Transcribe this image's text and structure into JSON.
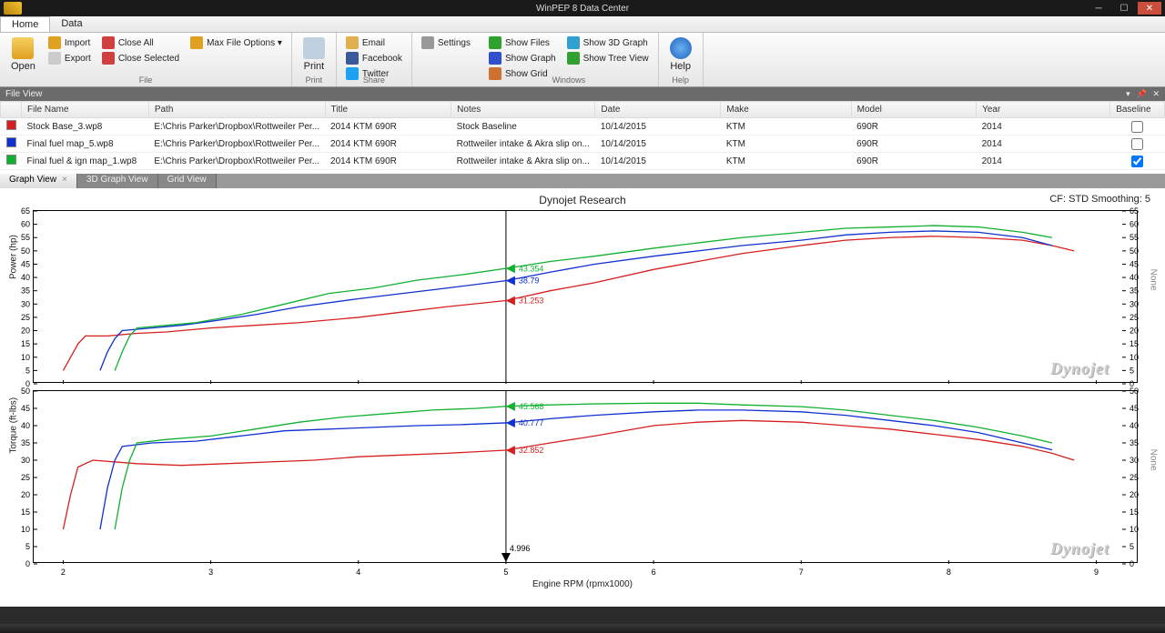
{
  "window": {
    "title": "WinPEP 8 Data Center"
  },
  "ribbonTabs": [
    "Home",
    "Data"
  ],
  "ribbonActiveTab": 0,
  "ribbon": {
    "file": {
      "open": "Open",
      "import": "Import",
      "export": "Export",
      "closeAll": "Close All",
      "closeSelected": "Close Selected",
      "maxFileOptions": "Max File Options ▾",
      "label": "File"
    },
    "print": {
      "print": "Print",
      "label": "Print"
    },
    "share": {
      "email": "Email",
      "facebook": "Facebook",
      "twitter": "Twitter",
      "label": "Share"
    },
    "settings": {
      "settings": "Settings"
    },
    "windows": {
      "showFiles": "Show Files",
      "showGraph": "Show Graph",
      "showGrid": "Show Grid",
      "show3d": "Show 3D Graph",
      "showTree": "Show Tree View",
      "label": "Windows"
    },
    "help": {
      "help": "Help",
      "label": "Help"
    }
  },
  "fileView": {
    "label": "File View",
    "columns": [
      "",
      "File Name",
      "Path",
      "Title",
      "Notes",
      "Date",
      "Make",
      "Model",
      "Year",
      "Baseline"
    ],
    "colWidths": [
      "18px",
      "140px",
      "140px",
      "140px",
      "110px",
      "140px",
      "146px",
      "140px",
      "150px",
      "60px"
    ],
    "rows": [
      {
        "color": "#d62020",
        "file": "Stock Base_3.wp8",
        "path": "E:\\Chris Parker\\Dropbox\\Rottweiler Per...",
        "title": "2014 KTM 690R",
        "notes": "Stock Baseline",
        "date": "10/14/2015",
        "make": "KTM",
        "model": "690R",
        "year": "2014",
        "baseline": false
      },
      {
        "color": "#1030d0",
        "file": "Final fuel map_5.wp8",
        "path": "E:\\Chris Parker\\Dropbox\\Rottweiler Per...",
        "title": "2014 KTM 690R",
        "notes": "Rottweiler intake & Akra slip on...",
        "date": "10/14/2015",
        "make": "KTM",
        "model": "690R",
        "year": "2014",
        "baseline": false
      },
      {
        "color": "#10b030",
        "file": "Final fuel & ign map_1.wp8",
        "path": "E:\\Chris Parker\\Dropbox\\Rottweiler Per...",
        "title": "2014 KTM 690R",
        "notes": "Rottweiler intake & Akra slip on...",
        "date": "10/14/2015",
        "make": "KTM",
        "model": "690R",
        "year": "2014",
        "baseline": true
      }
    ]
  },
  "graphTabs": {
    "tabs": [
      "Graph View",
      "3D Graph View",
      "Grid View"
    ],
    "active": 0
  },
  "chart": {
    "title": "Dynojet Research",
    "rightLabel": "CF: STD Smoothing: 5",
    "xlabel": "Engine RPM (rpmx1000)",
    "xlim": [
      1.8,
      9.2
    ],
    "xticks": [
      2,
      3,
      4,
      5,
      6,
      7,
      8,
      9
    ],
    "cursor_x": 5.0,
    "watermark": "Dynojet",
    "panels": [
      {
        "ylabel": "Power (hp)",
        "ylabel_right": "None",
        "ylim": [
          0,
          65
        ],
        "yticks": [
          0,
          5,
          10,
          15,
          20,
          25,
          30,
          35,
          40,
          45,
          50,
          55,
          60,
          65
        ],
        "height": 190,
        "markers": [
          {
            "color": "#10b030",
            "value": "43.354",
            "y": 43.354
          },
          {
            "color": "#1030d0",
            "value": "38.79",
            "y": 38.79
          },
          {
            "color": "#d62020",
            "value": "31.253",
            "y": 31.253
          }
        ],
        "series": [
          {
            "color": "#d62020",
            "points": [
              [
                2.0,
                5
              ],
              [
                2.05,
                10
              ],
              [
                2.1,
                15
              ],
              [
                2.15,
                18
              ],
              [
                2.3,
                18
              ],
              [
                2.5,
                19
              ],
              [
                2.7,
                19.5
              ],
              [
                3.0,
                21
              ],
              [
                3.3,
                22
              ],
              [
                3.6,
                23
              ],
              [
                4.0,
                25
              ],
              [
                4.3,
                27
              ],
              [
                4.6,
                29
              ],
              [
                5.0,
                31.3
              ],
              [
                5.3,
                35
              ],
              [
                5.6,
                38
              ],
              [
                6.0,
                43
              ],
              [
                6.3,
                46
              ],
              [
                6.6,
                49
              ],
              [
                7.0,
                52
              ],
              [
                7.3,
                54
              ],
              [
                7.6,
                55
              ],
              [
                7.9,
                55.5
              ],
              [
                8.2,
                55
              ],
              [
                8.5,
                54
              ],
              [
                8.7,
                52
              ],
              [
                8.85,
                50
              ]
            ]
          },
          {
            "color": "#1030d0",
            "points": [
              [
                2.25,
                5
              ],
              [
                2.3,
                12
              ],
              [
                2.35,
                17
              ],
              [
                2.4,
                20
              ],
              [
                2.6,
                21
              ],
              [
                2.8,
                22
              ],
              [
                3.0,
                23.5
              ],
              [
                3.3,
                26
              ],
              [
                3.6,
                29
              ],
              [
                4.0,
                32
              ],
              [
                4.3,
                34
              ],
              [
                4.6,
                36
              ],
              [
                5.0,
                38.8
              ],
              [
                5.3,
                42
              ],
              [
                5.6,
                45
              ],
              [
                6.0,
                48
              ],
              [
                6.3,
                50
              ],
              [
                6.6,
                52
              ],
              [
                7.0,
                54
              ],
              [
                7.3,
                56
              ],
              [
                7.6,
                57
              ],
              [
                7.9,
                57.5
              ],
              [
                8.2,
                57
              ],
              [
                8.5,
                55
              ],
              [
                8.7,
                52
              ]
            ]
          },
          {
            "color": "#10b030",
            "points": [
              [
                2.35,
                5
              ],
              [
                2.4,
                12
              ],
              [
                2.45,
                18
              ],
              [
                2.5,
                21
              ],
              [
                2.7,
                22
              ],
              [
                2.9,
                23
              ],
              [
                3.2,
                26
              ],
              [
                3.5,
                30
              ],
              [
                3.8,
                34
              ],
              [
                4.1,
                36
              ],
              [
                4.4,
                39
              ],
              [
                4.7,
                41
              ],
              [
                5.0,
                43.4
              ],
              [
                5.3,
                46
              ],
              [
                5.6,
                48
              ],
              [
                6.0,
                51
              ],
              [
                6.3,
                53
              ],
              [
                6.6,
                55
              ],
              [
                7.0,
                57
              ],
              [
                7.3,
                58.5
              ],
              [
                7.6,
                59
              ],
              [
                7.9,
                59.5
              ],
              [
                8.2,
                59
              ],
              [
                8.5,
                57
              ],
              [
                8.7,
                55
              ]
            ]
          }
        ]
      },
      {
        "ylabel": "Torque (ft-lbs)",
        "ylabel_right": "None",
        "ylim": [
          0,
          50
        ],
        "yticks": [
          0,
          5,
          10,
          15,
          20,
          25,
          30,
          35,
          40,
          45,
          50
        ],
        "height": 190,
        "markers": [
          {
            "color": "#10b030",
            "value": "45.568",
            "y": 45.568
          },
          {
            "color": "#1030d0",
            "value": "40.777",
            "y": 40.777
          },
          {
            "color": "#d62020",
            "value": "32.852",
            "y": 32.852
          },
          {
            "color": "#000000",
            "value": "4.996",
            "y": 2,
            "bottom": true
          }
        ],
        "series": [
          {
            "color": "#d62020",
            "points": [
              [
                2.0,
                10
              ],
              [
                2.05,
                20
              ],
              [
                2.1,
                28
              ],
              [
                2.2,
                30
              ],
              [
                2.5,
                29
              ],
              [
                2.8,
                28.5
              ],
              [
                3.1,
                29
              ],
              [
                3.4,
                29.5
              ],
              [
                3.7,
                30
              ],
              [
                4.0,
                31
              ],
              [
                4.3,
                31.5
              ],
              [
                4.6,
                32
              ],
              [
                5.0,
                32.9
              ],
              [
                5.3,
                35
              ],
              [
                5.6,
                37
              ],
              [
                6.0,
                40
              ],
              [
                6.3,
                41
              ],
              [
                6.6,
                41.5
              ],
              [
                7.0,
                41
              ],
              [
                7.3,
                40
              ],
              [
                7.6,
                39
              ],
              [
                7.9,
                37.5
              ],
              [
                8.2,
                36
              ],
              [
                8.5,
                34
              ],
              [
                8.7,
                32
              ],
              [
                8.85,
                30
              ]
            ]
          },
          {
            "color": "#1030d0",
            "points": [
              [
                2.25,
                10
              ],
              [
                2.3,
                22
              ],
              [
                2.35,
                30
              ],
              [
                2.4,
                34
              ],
              [
                2.6,
                35
              ],
              [
                2.9,
                35.5
              ],
              [
                3.2,
                37
              ],
              [
                3.5,
                38.5
              ],
              [
                3.8,
                39
              ],
              [
                4.1,
                39.5
              ],
              [
                4.4,
                40
              ],
              [
                4.7,
                40.3
              ],
              [
                5.0,
                40.8
              ],
              [
                5.3,
                42
              ],
              [
                5.6,
                43
              ],
              [
                6.0,
                44
              ],
              [
                6.3,
                44.5
              ],
              [
                6.6,
                44.5
              ],
              [
                7.0,
                44
              ],
              [
                7.3,
                43
              ],
              [
                7.6,
                41.5
              ],
              [
                7.9,
                40
              ],
              [
                8.2,
                38
              ],
              [
                8.5,
                35
              ],
              [
                8.7,
                33
              ]
            ]
          },
          {
            "color": "#10b030",
            "points": [
              [
                2.35,
                10
              ],
              [
                2.4,
                22
              ],
              [
                2.45,
                30
              ],
              [
                2.5,
                35
              ],
              [
                2.7,
                36
              ],
              [
                3.0,
                37
              ],
              [
                3.3,
                39
              ],
              [
                3.6,
                41
              ],
              [
                3.9,
                42.5
              ],
              [
                4.2,
                43.5
              ],
              [
                4.5,
                44.5
              ],
              [
                4.8,
                45
              ],
              [
                5.0,
                45.6
              ],
              [
                5.3,
                46
              ],
              [
                5.6,
                46.3
              ],
              [
                6.0,
                46.5
              ],
              [
                6.3,
                46.5
              ],
              [
                6.6,
                46
              ],
              [
                7.0,
                45.5
              ],
              [
                7.3,
                44.5
              ],
              [
                7.6,
                43
              ],
              [
                7.9,
                41.5
              ],
              [
                8.2,
                39.5
              ],
              [
                8.5,
                37
              ],
              [
                8.7,
                35
              ]
            ]
          }
        ]
      }
    ]
  },
  "colors": {
    "iconOpen": "#f0b030",
    "iconPrint": "#c0d0e0",
    "iconEmail": "#e0b050",
    "iconFb": "#3b5998",
    "iconTw": "#1da1f2",
    "iconGear": "#888",
    "iconShowFiles": "#30a030",
    "iconShowGraph": "#3050d0",
    "iconShowGrid": "#d07030",
    "icon3d": "#30a0d0",
    "iconTree": "#30a030",
    "iconHelp": "#3080d0"
  }
}
